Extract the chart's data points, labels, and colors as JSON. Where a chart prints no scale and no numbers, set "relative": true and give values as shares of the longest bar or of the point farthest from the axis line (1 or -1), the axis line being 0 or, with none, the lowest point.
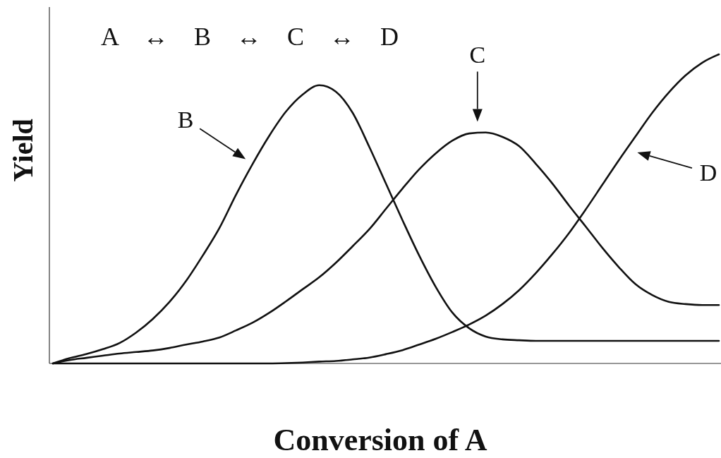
{
  "chart_data": {
    "type": "line",
    "relative": true,
    "xlabel": "Conversion of A",
    "ylabel": "Yield",
    "annotations": [
      "A ↔ B ↔ C ↔ D"
    ],
    "categories": [
      null,
      null,
      null,
      null,
      null,
      null,
      null,
      null,
      null,
      null,
      null,
      null,
      null,
      null,
      null,
      null,
      null,
      null,
      null,
      null,
      null,
      null,
      null,
      null,
      null,
      null,
      null,
      null,
      null,
      null,
      null,
      null,
      null,
      null,
      null,
      null,
      null,
      null,
      null,
      null,
      null
    ],
    "series": [
      {
        "name": "B",
        "color": "#111111",
        "values": [
          0,
          0.017,
          0.03,
          0.046,
          0.066,
          0.1,
          0.144,
          0.199,
          0.267,
          0.349,
          0.438,
          0.546,
          0.646,
          0.737,
          0.815,
          0.87,
          0.9,
          0.879,
          0.811,
          0.701,
          0.582,
          0.463,
          0.349,
          0.247,
          0.164,
          0.114,
          0.087,
          0.078,
          0.075,
          0.073,
          0.073,
          0.073,
          0.073,
          0.073,
          0.073,
          0.073,
          0.073,
          0.073,
          0.073,
          0.073,
          0.073
        ]
      },
      {
        "name": "C",
        "color": "#111111",
        "values": [
          0,
          0.011,
          0.018,
          0.025,
          0.032,
          0.037,
          0.042,
          0.05,
          0.061,
          0.071,
          0.084,
          0.107,
          0.132,
          0.164,
          0.201,
          0.24,
          0.279,
          0.326,
          0.379,
          0.434,
          0.5,
          0.566,
          0.628,
          0.68,
          0.721,
          0.744,
          0.747,
          0.733,
          0.703,
          0.646,
          0.582,
          0.511,
          0.443,
          0.374,
          0.311,
          0.256,
          0.221,
          0.199,
          0.192,
          0.189,
          0.189
        ]
      },
      {
        "name": "D",
        "color": "#111111",
        "values": [
          0,
          0,
          0,
          0,
          0,
          0,
          0,
          0,
          0,
          0,
          0,
          0,
          0,
          0,
          0.001,
          0.003,
          0.006,
          0.008,
          0.013,
          0.019,
          0.03,
          0.043,
          0.061,
          0.08,
          0.102,
          0.126,
          0.155,
          0.192,
          0.237,
          0.292,
          0.354,
          0.422,
          0.498,
          0.578,
          0.658,
          0.735,
          0.811,
          0.877,
          0.932,
          0.973,
          1
        ]
      }
    ]
  }
}
